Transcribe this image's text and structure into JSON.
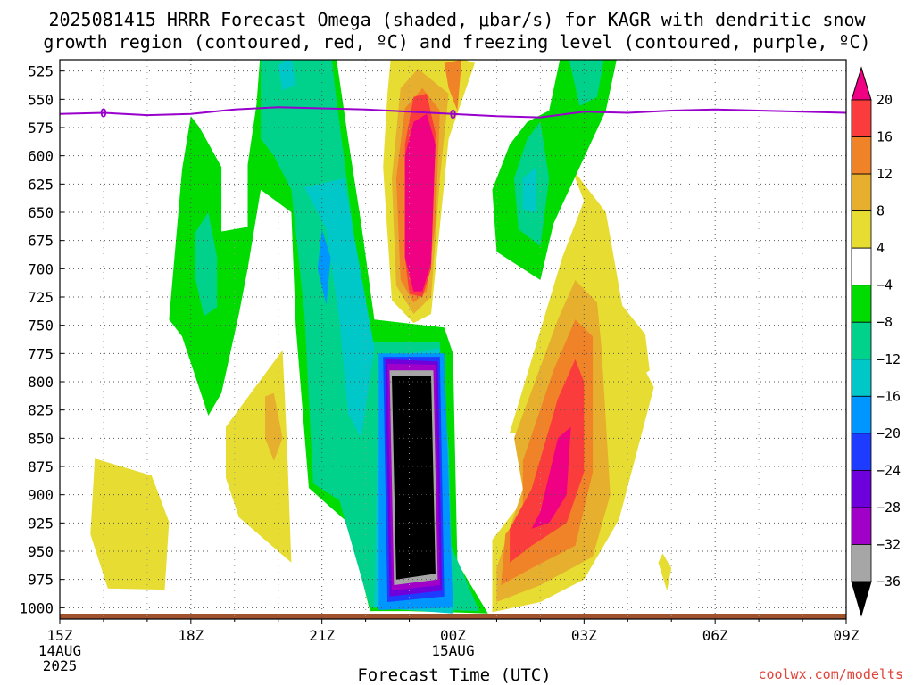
{
  "chart_data": {
    "type": "heatmap",
    "title_line1": "2025081415 HRRR Forecast Omega (shaded, μbar/s) for KAGR with dendritic snow",
    "title_line2": "growth region (contoured, red, ºC) and freezing level (contoured, purple, ºC)",
    "xlabel": "Forecast Time (UTC)",
    "credit": "coolwx.com/modelts",
    "x_range_hours": [
      0,
      18
    ],
    "x_ticks": [
      {
        "h": 0,
        "lines": [
          "15Z",
          "14AUG",
          "2025"
        ]
      },
      {
        "h": 3,
        "lines": [
          "18Z"
        ]
      },
      {
        "h": 6,
        "lines": [
          "21Z"
        ]
      },
      {
        "h": 9,
        "lines": [
          "00Z",
          "15AUG"
        ]
      },
      {
        "h": 12,
        "lines": [
          "03Z"
        ]
      },
      {
        "h": 15,
        "lines": [
          "06Z"
        ]
      },
      {
        "h": 18,
        "lines": [
          "09Z"
        ]
      }
    ],
    "y_range_mb": [
      1010,
      515
    ],
    "y_ticks": [
      525,
      550,
      575,
      600,
      625,
      650,
      675,
      700,
      725,
      750,
      775,
      800,
      825,
      850,
      875,
      900,
      925,
      950,
      975,
      1000
    ],
    "grid": true,
    "colorbar": {
      "levels": [
        -36,
        -32,
        -28,
        -24,
        -20,
        -16,
        -12,
        -8,
        -4,
        4,
        8,
        12,
        16,
        20
      ],
      "label_levels": [
        20,
        16,
        12,
        8,
        4,
        -4,
        -8,
        -12,
        -16,
        -20,
        -24,
        -28,
        -32,
        -36
      ],
      "colors": [
        "#000000",
        "#a6a6a6",
        "#a000c8",
        "#6e00dc",
        "#1e3cff",
        "#0096ff",
        "#00c8c8",
        "#00d28c",
        "#00dc00",
        "#ffffff",
        "#e6dc32",
        "#e6af2d",
        "#f08228",
        "#fa3c3c",
        "#f00082"
      ]
    },
    "freezing_level_contour": {
      "label": "0",
      "color": "#9900cc",
      "points": [
        [
          0,
          563
        ],
        [
          1,
          562
        ],
        [
          2,
          564
        ],
        [
          3,
          563
        ],
        [
          4,
          559
        ],
        [
          5,
          557
        ],
        [
          6,
          558
        ],
        [
          7,
          559
        ],
        [
          8,
          561
        ],
        [
          9,
          563
        ],
        [
          10,
          565
        ],
        [
          11,
          566
        ],
        [
          12,
          561
        ],
        [
          13,
          562
        ],
        [
          14,
          560
        ],
        [
          15,
          559
        ],
        [
          16,
          560
        ],
        [
          17,
          561
        ],
        [
          18,
          562
        ]
      ]
    },
    "omega_regions": [
      {
        "value": 6,
        "points": [
          [
            0.8,
            868
          ],
          [
            2.1,
            883
          ],
          [
            2.5,
            924
          ],
          [
            2.4,
            984
          ],
          [
            1.1,
            983
          ],
          [
            0.7,
            935
          ]
        ]
      },
      {
        "value": 6,
        "points": [
          [
            3.8,
            840
          ],
          [
            5.1,
            772
          ],
          [
            5.2,
            855
          ],
          [
            5.3,
            960
          ],
          [
            4.1,
            920
          ],
          [
            3.8,
            885
          ]
        ]
      },
      {
        "value": 10,
        "points": [
          [
            4.7,
            813
          ],
          [
            4.9,
            810
          ],
          [
            5.1,
            850
          ],
          [
            4.9,
            870
          ],
          [
            4.7,
            850
          ]
        ]
      },
      {
        "value": 6,
        "points": [
          [
            7.6,
            503
          ],
          [
            8.5,
            505
          ],
          [
            9.5,
            518
          ],
          [
            8.9,
            585
          ],
          [
            8.5,
            740
          ],
          [
            8.1,
            748
          ],
          [
            7.6,
            728
          ],
          [
            7.4,
            610
          ],
          [
            7.5,
            545
          ]
        ]
      },
      {
        "value": 10,
        "points": [
          [
            7.8,
            540
          ],
          [
            8.2,
            523
          ],
          [
            8.9,
            545
          ],
          [
            8.7,
            620
          ],
          [
            8.5,
            725
          ],
          [
            8.1,
            740
          ],
          [
            7.7,
            715
          ],
          [
            7.6,
            620
          ]
        ]
      },
      {
        "value": 14,
        "points": [
          [
            7.9,
            558
          ],
          [
            8.3,
            540
          ],
          [
            8.7,
            560
          ],
          [
            8.6,
            660
          ],
          [
            8.4,
            720
          ],
          [
            8.1,
            730
          ],
          [
            7.8,
            710
          ],
          [
            7.7,
            620
          ]
        ]
      },
      {
        "value": 18,
        "points": [
          [
            8.1,
            548
          ],
          [
            8.4,
            545
          ],
          [
            8.6,
            580
          ],
          [
            8.5,
            700
          ],
          [
            8.3,
            725
          ],
          [
            8.0,
            722
          ],
          [
            7.9,
            690
          ],
          [
            7.9,
            590
          ]
        ]
      },
      {
        "value": 22,
        "points": [
          [
            8.1,
            570
          ],
          [
            8.4,
            563
          ],
          [
            8.6,
            590
          ],
          [
            8.5,
            695
          ],
          [
            8.3,
            720
          ],
          [
            8.1,
            720
          ],
          [
            7.9,
            690
          ],
          [
            7.9,
            600
          ]
        ]
      },
      {
        "value": 14,
        "points": [
          [
            8.8,
            518
          ],
          [
            9.2,
            515
          ],
          [
            9.1,
            560
          ],
          [
            8.9,
            540
          ]
        ]
      },
      {
        "value": 6,
        "points": [
          [
            10.3,
            845
          ],
          [
            11.5,
            690
          ],
          [
            12,
            640
          ],
          [
            11.7,
            610
          ],
          [
            12.5,
            650
          ],
          [
            13.0,
            760
          ],
          [
            13.6,
            805
          ],
          [
            12.8,
            922
          ],
          [
            12.0,
            975
          ],
          [
            11.0,
            995
          ],
          [
            9.9,
            1004
          ],
          [
            9.9,
            940
          ],
          [
            10.5,
            910
          ],
          [
            11.0,
            850
          ]
        ]
      },
      {
        "value": 6,
        "points": [
          [
            12.0,
            690
          ],
          [
            13.4,
            758
          ],
          [
            13.5,
            790
          ],
          [
            13.0,
            803
          ],
          [
            12.4,
            770
          ]
        ]
      },
      {
        "value": 6,
        "points": [
          [
            13.8,
            952
          ],
          [
            14.0,
            965
          ],
          [
            13.9,
            985
          ],
          [
            13.7,
            960
          ]
        ]
      },
      {
        "value": 10,
        "points": [
          [
            10.4,
            850
          ],
          [
            11.4,
            745
          ],
          [
            11.8,
            710
          ],
          [
            12.3,
            730
          ],
          [
            12.4,
            770
          ],
          [
            12.6,
            900
          ],
          [
            12.2,
            955
          ],
          [
            11.0,
            980
          ],
          [
            10.0,
            995
          ],
          [
            10.0,
            965
          ],
          [
            10.6,
            895
          ]
        ]
      },
      {
        "value": 14,
        "points": [
          [
            10.6,
            870
          ],
          [
            11.3,
            790
          ],
          [
            11.8,
            745
          ],
          [
            12.2,
            760
          ],
          [
            12.2,
            880
          ],
          [
            11.8,
            945
          ],
          [
            10.8,
            965
          ],
          [
            10.1,
            980
          ],
          [
            10.2,
            935
          ],
          [
            10.6,
            915
          ]
        ]
      },
      {
        "value": 18,
        "points": [
          [
            10.8,
            895
          ],
          [
            11.4,
            815
          ],
          [
            11.8,
            780
          ],
          [
            12.0,
            800
          ],
          [
            12.0,
            880
          ],
          [
            11.6,
            925
          ],
          [
            10.8,
            945
          ],
          [
            10.3,
            960
          ],
          [
            10.3,
            930
          ]
        ]
      },
      {
        "value": 22,
        "points": [
          [
            11.0,
            915
          ],
          [
            11.4,
            850
          ],
          [
            11.7,
            840
          ],
          [
            11.6,
            900
          ],
          [
            11.2,
            925
          ],
          [
            10.8,
            930
          ]
        ]
      },
      {
        "value": -6,
        "points": [
          [
            2.5,
            745
          ],
          [
            2.8,
            612
          ],
          [
            3.0,
            565
          ],
          [
            3.2,
            575
          ],
          [
            3.7,
            610
          ],
          [
            3.7,
            667
          ],
          [
            4.3,
            663
          ],
          [
            4.3,
            608
          ],
          [
            4.5,
            555
          ],
          [
            4.6,
            505
          ],
          [
            6.3,
            505
          ],
          [
            6.6,
            585
          ],
          [
            6.9,
            660
          ],
          [
            7.2,
            745
          ],
          [
            8.8,
            752
          ],
          [
            9.0,
            775
          ],
          [
            9.1,
            960
          ],
          [
            9.8,
            1005
          ],
          [
            8.0,
            1003
          ],
          [
            7.1,
            1003
          ],
          [
            6.6,
            925
          ],
          [
            5.7,
            894
          ],
          [
            5.4,
            750
          ],
          [
            5.3,
            650
          ],
          [
            4.6,
            630
          ],
          [
            4.3,
            700
          ],
          [
            4.1,
            740
          ],
          [
            3.7,
            810
          ],
          [
            3.4,
            830
          ],
          [
            2.8,
            760
          ]
        ]
      },
      {
        "value": -6,
        "points": [
          [
            9.9,
            630
          ],
          [
            10.3,
            590
          ],
          [
            10.7,
            570
          ],
          [
            11.2,
            560
          ],
          [
            11.5,
            505
          ],
          [
            12.8,
            505
          ],
          [
            12.5,
            560
          ],
          [
            11.3,
            660
          ],
          [
            11.0,
            710
          ],
          [
            10.0,
            685
          ]
        ]
      },
      {
        "value": -10,
        "points": [
          [
            3.1,
            668
          ],
          [
            3.4,
            650
          ],
          [
            3.6,
            690
          ],
          [
            3.6,
            734
          ],
          [
            3.3,
            742
          ],
          [
            3.1,
            708
          ]
        ]
      },
      {
        "value": -10,
        "points": [
          [
            4.6,
            505
          ],
          [
            6.2,
            505
          ],
          [
            6.3,
            540
          ],
          [
            6.7,
            660
          ],
          [
            7.0,
            765
          ],
          [
            8.7,
            765
          ],
          [
            8.9,
            940
          ],
          [
            9.6,
            1003
          ],
          [
            7.1,
            1000
          ],
          [
            6.4,
            905
          ],
          [
            5.8,
            890
          ],
          [
            5.6,
            740
          ],
          [
            5.3,
            630
          ],
          [
            4.9,
            600
          ],
          [
            4.6,
            585
          ]
        ]
      },
      {
        "value": -10,
        "points": [
          [
            10.4,
            620
          ],
          [
            10.7,
            585
          ],
          [
            11.0,
            570
          ],
          [
            11.2,
            620
          ],
          [
            11.0,
            680
          ],
          [
            10.5,
            665
          ]
        ]
      },
      {
        "value": -10,
        "points": [
          [
            11.6,
            505
          ],
          [
            12.5,
            505
          ],
          [
            12.3,
            548
          ],
          [
            11.9,
            556
          ]
        ]
      },
      {
        "value": -14,
        "points": [
          [
            5.0,
            520
          ],
          [
            5.3,
            512
          ],
          [
            5.4,
            537
          ],
          [
            5.1,
            542
          ]
        ]
      },
      {
        "value": -14,
        "points": [
          [
            5.6,
            628
          ],
          [
            6.1,
            665
          ],
          [
            6.4,
            745
          ],
          [
            6.6,
            828
          ],
          [
            6.9,
            850
          ],
          [
            7.2,
            770
          ],
          [
            6.5,
            620
          ]
        ]
      },
      {
        "value": -14,
        "points": [
          [
            8.7,
            770
          ],
          [
            8.9,
            860
          ],
          [
            9.0,
            1005
          ],
          [
            7.2,
            1000
          ],
          [
            7.3,
            780
          ]
        ]
      },
      {
        "value": -14,
        "points": [
          [
            10.6,
            620
          ],
          [
            10.9,
            610
          ],
          [
            10.9,
            650
          ],
          [
            10.6,
            648
          ]
        ]
      },
      {
        "value": -18,
        "points": [
          [
            6.0,
            665
          ],
          [
            6.2,
            690
          ],
          [
            6.1,
            732
          ],
          [
            5.9,
            700
          ]
        ]
      },
      {
        "value": -18,
        "points": [
          [
            7.3,
            775
          ],
          [
            8.8,
            775
          ],
          [
            9.0,
            1000
          ],
          [
            7.3,
            1002
          ]
        ]
      },
      {
        "value": -22,
        "points": [
          [
            7.4,
            778
          ],
          [
            8.7,
            778
          ],
          [
            8.8,
            990
          ],
          [
            7.5,
            995
          ]
        ]
      },
      {
        "value": -26,
        "points": [
          [
            7.45,
            780
          ],
          [
            8.65,
            782
          ],
          [
            8.75,
            985
          ],
          [
            7.55,
            990
          ]
        ]
      },
      {
        "value": -30,
        "points": [
          [
            7.5,
            784
          ],
          [
            8.6,
            785
          ],
          [
            8.7,
            980
          ],
          [
            7.6,
            985
          ]
        ]
      },
      {
        "value": -34,
        "points": [
          [
            7.55,
            790
          ],
          [
            8.55,
            790
          ],
          [
            8.65,
            975
          ],
          [
            7.65,
            980
          ]
        ]
      },
      {
        "value": -40,
        "points": [
          [
            7.6,
            795
          ],
          [
            8.5,
            795
          ],
          [
            8.6,
            970
          ],
          [
            7.7,
            975
          ]
        ]
      }
    ]
  }
}
